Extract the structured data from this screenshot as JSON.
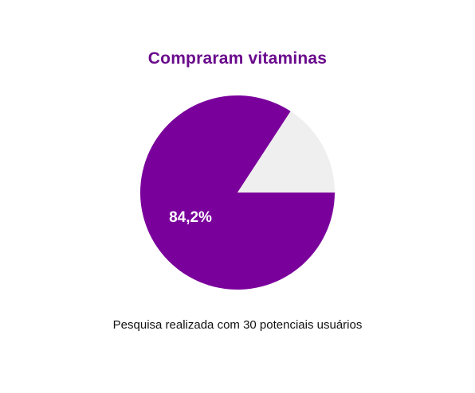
{
  "chart_data": {
    "type": "pie",
    "title": "Compraram vitaminas",
    "caption": "Pesquisa realizada com 30 potenciais usuários",
    "slices": [
      {
        "value": 84.2,
        "label": "84,2%",
        "color": "#7a009c"
      },
      {
        "value": 15.8,
        "label": "",
        "color": "#efefef"
      }
    ],
    "title_color": "#6a0a8c",
    "label_color": "#ffffff",
    "legend": "none"
  }
}
